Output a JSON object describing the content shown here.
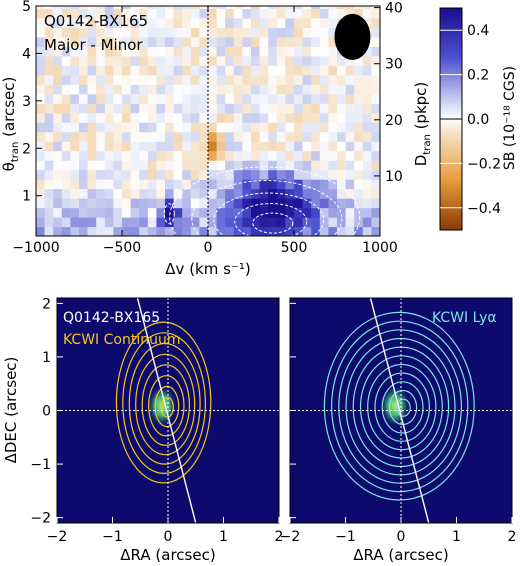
{
  "chart_data": [
    {
      "type": "heatmap",
      "panel": "top",
      "title_lines": [
        "Q0142-BX165",
        "Major - Minor"
      ],
      "xlabel": "Δv (km s⁻¹)",
      "ylabel_left": "θ",
      "ylabel_left_sub": "tran",
      "ylabel_left_unit": " (arcsec)",
      "ylabel_right": "D",
      "ylabel_right_sub": "tran",
      "ylabel_right_unit": " (pkpc)",
      "xlim": [
        -1000,
        1000
      ],
      "ylim": [
        0.15,
        5
      ],
      "xticks": [
        -1000,
        -500,
        0,
        500,
        1000
      ],
      "xtick_labels": [
        "−1000",
        "−500",
        "0",
        "500",
        "1000"
      ],
      "yticks": [
        1,
        2,
        3,
        4,
        5
      ],
      "ytick_labels": [
        "1",
        "2",
        "3",
        "4",
        "5"
      ],
      "right_ticks": [
        10,
        20,
        30,
        40
      ],
      "right_tick_labels": [
        "10",
        "20",
        "30",
        "40"
      ],
      "right_axis_max": 41,
      "colorbar": {
        "label": "SB (10⁻¹⁸ CGS)",
        "range": [
          -0.5,
          0.5
        ],
        "ticks": [
          -0.4,
          -0.2,
          0.0,
          0.2,
          0.4
        ],
        "tick_labels": [
          "−0.4",
          "−0.2",
          "0.0",
          "0.2",
          "0.4"
        ]
      },
      "highlights": [
        {
          "name": "redshifted emission",
          "x_range": [
            100,
            650
          ],
          "y_range": [
            0.2,
            1.5
          ],
          "sign": "positive"
        },
        {
          "name": "blueshifted knot",
          "x_range": [
            -280,
            -170
          ],
          "y_range": [
            0.4,
            0.9
          ],
          "sign": "positive"
        },
        {
          "name": "negative feature",
          "x_range": [
            0,
            80
          ],
          "y_range": [
            1.7,
            2.4
          ],
          "sign": "negative"
        }
      ],
      "beam": "filled ellipse, top-right"
    },
    {
      "type": "heatmap",
      "panel": "bottom-left",
      "title_lines": [
        "Q0142-BX165",
        "KCWI Continuum"
      ],
      "xlabel": "ΔRA (arcsec)",
      "ylabel": "ΔDEC (arcsec)",
      "xlim": [
        -2,
        2
      ],
      "ylim": [
        -2.1,
        2.1
      ],
      "xticks": [
        -2,
        -1,
        0,
        1,
        2
      ],
      "xtick_labels": [
        "−2",
        "−1",
        "0",
        "1",
        "2"
      ],
      "yticks": [
        -2,
        -1,
        0,
        1,
        2
      ],
      "ytick_labels": [
        "−2",
        "−1",
        "0",
        "1",
        "2"
      ],
      "contour_color": "#f5c518",
      "contour_levels": 8
    },
    {
      "type": "heatmap",
      "panel": "bottom-right",
      "title_lines": [
        "KCWI Lyα"
      ],
      "xlabel": "ΔRA (arcsec)",
      "xlim": [
        -2,
        2
      ],
      "ylim": [
        -2.1,
        2.1
      ],
      "xticks": [
        -2,
        -1,
        0,
        1,
        2
      ],
      "xtick_labels": [
        "−2",
        "−1",
        "0",
        "1",
        "2"
      ],
      "contour_color": "#7fe3e0",
      "contour_levels": 11
    }
  ],
  "colors": {
    "image_background": "#0d0a6e",
    "positive": "#1a0f8e",
    "negative": "#b8520a",
    "core": "#7ecf3a"
  }
}
